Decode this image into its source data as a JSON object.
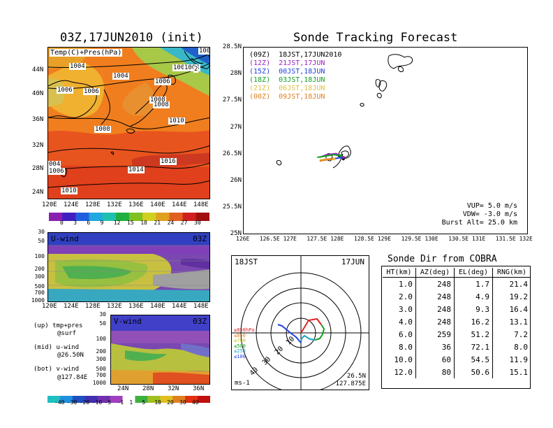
{
  "left_title": "03Z,17JUN2010 (init)",
  "right_title": "Sonde Tracking Forecast",
  "map_panel": {
    "label": "Temp(C)+Pres(hPa)",
    "x_ticks": [
      "120E",
      "124E",
      "128E",
      "132E",
      "136E",
      "140E",
      "144E",
      "148E"
    ],
    "y_ticks": [
      "44N",
      "40N",
      "36N",
      "32N",
      "28N",
      "24N"
    ],
    "isobar_labels": [
      "1004",
      "1004",
      "1004",
      "1006",
      "1006",
      "1006",
      "1008",
      "1008",
      "1008",
      "1010",
      "1016",
      "1014",
      "004",
      "1006",
      "1010",
      "1004",
      "100",
      "2"
    ]
  },
  "colorbar_top": {
    "values": [
      "0",
      "3",
      "6",
      "9",
      "12",
      "15",
      "18",
      "21",
      "24",
      "27",
      "30"
    ]
  },
  "uwind_panel": {
    "label": "U-wind",
    "time": "03Z",
    "y_ticks": [
      "30",
      "50",
      "100",
      "200",
      "300",
      "500",
      "700",
      "1000"
    ],
    "x_ticks": [
      "120E",
      "124E",
      "128E",
      "132E",
      "136E",
      "140E",
      "144E",
      "148E"
    ]
  },
  "vwind_panel": {
    "label": "V-wind",
    "time": "03Z",
    "y_ticks": [
      "30",
      "50",
      "100",
      "200",
      "300",
      "500",
      "700",
      "1000"
    ],
    "x_ticks": [
      "24N",
      "28N",
      "32N",
      "36N"
    ]
  },
  "notes": {
    "up1": "(up) tmp+pres",
    "up2": "@surf",
    "mid1": "(mid) u-wind",
    "mid2": "@26.50N",
    "bot1": "(bot) v-wind",
    "bot2": "@127.84E"
  },
  "colorbar_bottom": {
    "values": [
      "-40",
      "-30",
      "-20",
      "-10",
      "-5",
      "-1",
      "1",
      "5",
      "10",
      "20",
      "30",
      "40"
    ]
  },
  "track_panel": {
    "legend": [
      {
        "text": "(09Z)  18JST,17JUN2010",
        "color": "#000000"
      },
      {
        "text": "(12Z)  21JST,17JUN",
        "color": "#a020c0"
      },
      {
        "text": "(15Z)  00JST,18JUN",
        "color": "#2040e0"
      },
      {
        "text": "(18Z)  03JST,18JUN",
        "color": "#10a020"
      },
      {
        "text": "(21Z)  06JST,18JUN",
        "color": "#e0c040"
      },
      {
        "text": "(00Z)  09JST,18JUN",
        "color": "#e08020"
      }
    ],
    "y_ticks": [
      "28.5N",
      "28N",
      "27.5N",
      "27N",
      "26.5N",
      "26N",
      "25.5N",
      "25N"
    ],
    "x_ticks": [
      "126E",
      "126.5E",
      "127E",
      "127.5E",
      "128E",
      "128.5E",
      "129E",
      "129.5E",
      "130E",
      "130.5E",
      "131E",
      "131.5E",
      "132E"
    ],
    "info1": "VUP=  5.0  m/s",
    "info2": "VDW= -3.0  m/s",
    "info3": "Burst Alt= 25.0  km"
  },
  "hodo_panel": {
    "left_label": "18JST",
    "right_label": "17JUN",
    "ring_labels": [
      "10",
      "20",
      "30",
      "40"
    ],
    "level_legend": [
      {
        "text": "≥850hPa",
        "color": "#e02020"
      },
      {
        "text": "≤850",
        "color": "#e08020"
      },
      {
        "text": "≤700",
        "color": "#c0c020"
      },
      {
        "text": "≤500",
        "color": "#10a020"
      },
      {
        "text": "≤250",
        "color": "#20a0c0"
      },
      {
        "text": "≤100",
        "color": "#2040e0"
      }
    ],
    "unit": "ms-1",
    "loc1": "26.5N",
    "loc2": "127.875E"
  },
  "sonde_table": {
    "title": "Sonde Dir from COBRA",
    "headers": [
      "HT(km)",
      "AZ(deg)",
      "EL(deg)",
      "RNG(km)"
    ],
    "rows": [
      [
        "1.0",
        "248",
        "1.7",
        "21.4"
      ],
      [
        "2.0",
        "248",
        "4.9",
        "19.2"
      ],
      [
        "3.0",
        "248",
        "9.3",
        "16.4"
      ],
      [
        "4.0",
        "248",
        "16.2",
        "13.1"
      ],
      [
        "6.0",
        "259",
        "51.2",
        "7.2"
      ],
      [
        "8.0",
        "36",
        "72.1",
        "8.0"
      ],
      [
        "10.0",
        "60",
        "54.5",
        "11.9"
      ],
      [
        "12.0",
        "80",
        "50.6",
        "15.1"
      ]
    ]
  },
  "chart_data": [
    {
      "type": "heatmap",
      "title": "03Z,17JUN2010 (init)",
      "subtitle": "Temp(C)+Pres(hPa)",
      "xlim": [
        120,
        150
      ],
      "ylim": [
        22,
        47
      ],
      "colorbar": [
        0,
        3,
        6,
        9,
        12,
        15,
        18,
        21,
        24,
        27,
        30
      ]
    },
    {
      "type": "heatmap",
      "subtitle": "U-wind 03Z",
      "ylim": [
        1000,
        30
      ],
      "colorbar": [
        -40,
        -30,
        -20,
        -10,
        -5,
        -1,
        1,
        5,
        10,
        20,
        30,
        40
      ]
    },
    {
      "type": "heatmap",
      "subtitle": "V-wind 03Z",
      "ylim": [
        1000,
        30
      ]
    },
    {
      "type": "line",
      "title": "Sonde Tracking Forecast",
      "xlim": [
        126,
        132
      ],
      "ylim": [
        25,
        28.5
      ],
      "series": [
        {
          "name": "(09Z) 18JST,17JUN2010",
          "x": [
            127.95,
            128.05,
            128.1
          ],
          "y": [
            26.5,
            26.45,
            26.42
          ]
        },
        {
          "name": "(12Z) 21JST,17JUN",
          "x": [
            127.6,
            127.75,
            127.95,
            128.1
          ],
          "y": [
            26.45,
            26.5,
            26.52,
            26.45
          ]
        },
        {
          "name": "(15Z) 00JST,18JUN",
          "x": [
            127.65,
            127.8,
            127.95,
            128.05
          ],
          "y": [
            26.4,
            26.42,
            26.43,
            26.45
          ]
        },
        {
          "name": "(18Z) 03JST,18JUN",
          "x": [
            127.55,
            127.7,
            127.9,
            128.05
          ],
          "y": [
            26.45,
            26.47,
            26.5,
            26.48
          ]
        },
        {
          "name": "(21Z) 06JST,18JUN",
          "x": [
            127.6,
            127.75,
            127.9
          ],
          "y": [
            26.4,
            26.42,
            26.42
          ]
        },
        {
          "name": "(00Z) 09JST,18JUN",
          "x": [
            127.6,
            127.72,
            127.85
          ],
          "y": [
            26.38,
            26.4,
            26.42
          ]
        }
      ]
    },
    {
      "type": "table",
      "title": "Sonde Dir from COBRA",
      "headers": [
        "HT(km)",
        "AZ(deg)",
        "EL(deg)",
        "RNG(km)"
      ],
      "rows": [
        [
          "1.0",
          "248",
          "1.7",
          "21.4"
        ],
        [
          "2.0",
          "248",
          "4.9",
          "19.2"
        ],
        [
          "3.0",
          "248",
          "9.3",
          "16.4"
        ],
        [
          "4.0",
          "248",
          "16.2",
          "13.1"
        ],
        [
          "6.0",
          "259",
          "51.2",
          "7.2"
        ],
        [
          "8.0",
          "36",
          "72.1",
          "8.0"
        ],
        [
          "10.0",
          "60",
          "54.5",
          "11.9"
        ],
        [
          "12.0",
          "80",
          "50.6",
          "15.1"
        ]
      ]
    }
  ]
}
